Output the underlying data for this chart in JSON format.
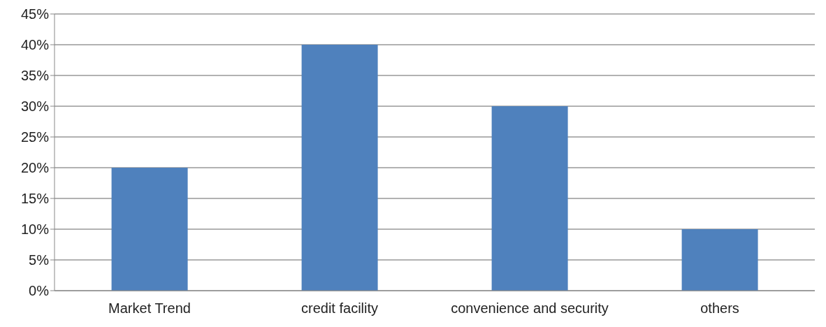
{
  "chart_data": {
    "type": "bar",
    "categories": [
      "Market Trend",
      "credit facility",
      "convenience and security",
      "others"
    ],
    "values": [
      20,
      40,
      30,
      10
    ],
    "color": "#4f81bd",
    "ylim": [
      0,
      45
    ],
    "yticks": [
      {
        "value": 0,
        "label": "0%"
      },
      {
        "value": 5,
        "label": "5%"
      },
      {
        "value": 10,
        "label": "10%"
      },
      {
        "value": 15,
        "label": "15%"
      },
      {
        "value": 20,
        "label": "20%"
      },
      {
        "value": 25,
        "label": "25%"
      },
      {
        "value": 30,
        "label": "30%"
      },
      {
        "value": 35,
        "label": "35%"
      },
      {
        "value": 40,
        "label": "40%"
      },
      {
        "value": 45,
        "label": "45%"
      }
    ],
    "grid": "y"
  }
}
